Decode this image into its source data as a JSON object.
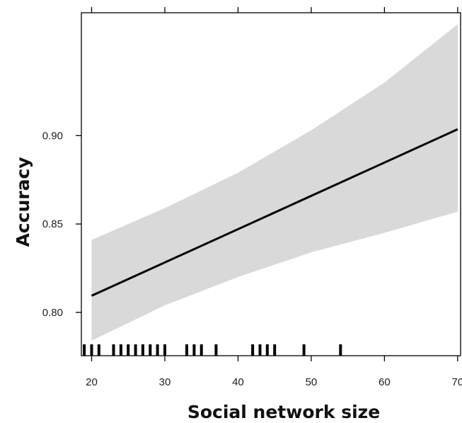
{
  "chart_data": {
    "type": "line",
    "title": "",
    "xlabel": "Social network size",
    "ylabel": "Accuracy",
    "xlim": [
      18.6,
      70.4
    ],
    "ylim": [
      0.7755,
      0.9695
    ],
    "x_ticks": [
      20,
      30,
      40,
      50,
      60,
      70
    ],
    "x_tick_labels": [
      "20",
      "30",
      "40",
      "50",
      "60",
      "70"
    ],
    "y_ticks": [
      0.8,
      0.85,
      0.9
    ],
    "y_tick_labels": [
      "0.80",
      "0.85",
      "0.90"
    ],
    "series": [
      {
        "role": "fit",
        "x": [
          20,
          70
        ],
        "y": [
          0.8094,
          0.9036
        ]
      }
    ],
    "confidence_band": {
      "x": [
        20,
        30,
        40,
        50,
        60,
        70
      ],
      "lower": [
        0.784,
        0.804,
        0.82,
        0.834,
        0.845,
        0.857
      ],
      "upper": [
        0.841,
        0.859,
        0.879,
        0.903,
        0.93,
        0.963
      ]
    },
    "rug_x": [
      19,
      20,
      21,
      23,
      24,
      25,
      26,
      27,
      28,
      29,
      30,
      33,
      34,
      35,
      37,
      42,
      43,
      44,
      45,
      49,
      54
    ],
    "grid": false,
    "colors": {
      "band": "#d9d9d9",
      "line": "#000000",
      "axis": "#000000"
    }
  }
}
